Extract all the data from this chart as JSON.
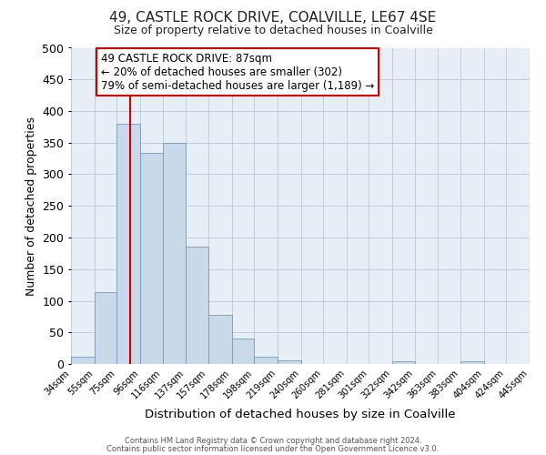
{
  "title": "49, CASTLE ROCK DRIVE, COALVILLE, LE67 4SE",
  "subtitle": "Size of property relative to detached houses in Coalville",
  "xlabel": "Distribution of detached houses by size in Coalville",
  "ylabel": "Number of detached properties",
  "bin_labels": [
    "34sqm",
    "55sqm",
    "75sqm",
    "96sqm",
    "116sqm",
    "137sqm",
    "157sqm",
    "178sqm",
    "198sqm",
    "219sqm",
    "240sqm",
    "260sqm",
    "281sqm",
    "301sqm",
    "322sqm",
    "342sqm",
    "363sqm",
    "383sqm",
    "404sqm",
    "424sqm",
    "445sqm"
  ],
  "bin_edges": [
    34,
    55,
    75,
    96,
    116,
    137,
    157,
    178,
    198,
    219,
    240,
    260,
    281,
    301,
    322,
    342,
    363,
    383,
    404,
    424,
    445
  ],
  "bar_values": [
    12,
    114,
    380,
    334,
    350,
    185,
    77,
    40,
    12,
    6,
    0,
    0,
    0,
    0,
    5,
    0,
    0,
    4,
    0,
    0,
    4
  ],
  "bar_color": "#c9d9e9",
  "bar_edge_color": "#7799bb",
  "vline_x": 87,
  "vline_color": "#cc0000",
  "annotation_line1": "49 CASTLE ROCK DRIVE: 87sqm",
  "annotation_line2": "← 20% of detached houses are smaller (302)",
  "annotation_line3": "79% of semi-detached houses are larger (1,189) →",
  "ylim": [
    0,
    500
  ],
  "yticks": [
    0,
    50,
    100,
    150,
    200,
    250,
    300,
    350,
    400,
    450,
    500
  ],
  "fig_bg_color": "#ffffff",
  "plot_bg_color": "#e8eef5",
  "grid_color": "#c0ccd8",
  "footer_line1": "Contains HM Land Registry data © Crown copyright and database right 2024.",
  "footer_line2": "Contains public sector information licensed under the Open Government Licence v3.0."
}
